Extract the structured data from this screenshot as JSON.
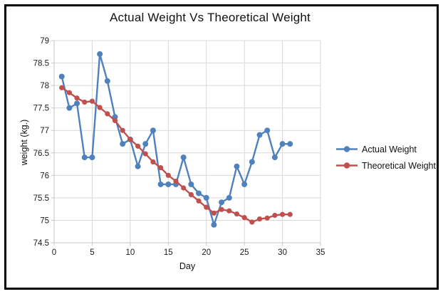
{
  "chart_data": {
    "type": "line",
    "title": "Actual Weight Vs Theoretical Weight",
    "xlabel": "Day",
    "ylabel": "weight (kg.)",
    "x": [
      1,
      2,
      3,
      4,
      5,
      6,
      7,
      8,
      9,
      10,
      11,
      12,
      13,
      14,
      15,
      16,
      17,
      18,
      19,
      20,
      21,
      22,
      23,
      24,
      25,
      26,
      27,
      28,
      29,
      30,
      31
    ],
    "series": [
      {
        "name": "Actual Weight",
        "color": "#4F81BD",
        "values": [
          78.2,
          77.5,
          77.6,
          76.4,
          76.4,
          78.7,
          78.1,
          77.3,
          76.7,
          76.8,
          76.2,
          76.7,
          77.0,
          75.8,
          75.8,
          75.8,
          76.4,
          75.8,
          75.6,
          75.5,
          74.9,
          75.4,
          75.5,
          76.2,
          75.8,
          76.3,
          76.9,
          77.0,
          76.4,
          76.7,
          76.7
        ]
      },
      {
        "name": "Theoretical Weight",
        "color": "#C0504D",
        "values": [
          77.95,
          77.84,
          77.72,
          77.63,
          77.65,
          77.51,
          77.37,
          77.22,
          77.0,
          76.8,
          76.65,
          76.48,
          76.3,
          76.17,
          76.0,
          75.87,
          75.72,
          75.57,
          75.43,
          75.29,
          75.16,
          75.24,
          75.21,
          75.14,
          75.06,
          74.96,
          75.03,
          75.05,
          75.11,
          75.13,
          75.13
        ]
      }
    ],
    "xlim": [
      0,
      35
    ],
    "ylim": [
      74.5,
      79
    ],
    "xtick_step": 5,
    "ytick_step": 0.5,
    "grid": true,
    "legend_position": "right",
    "gridline_color": "#D9D9D9",
    "axis_color": "#C6C6C6",
    "text_color": "#1a1a1a"
  }
}
